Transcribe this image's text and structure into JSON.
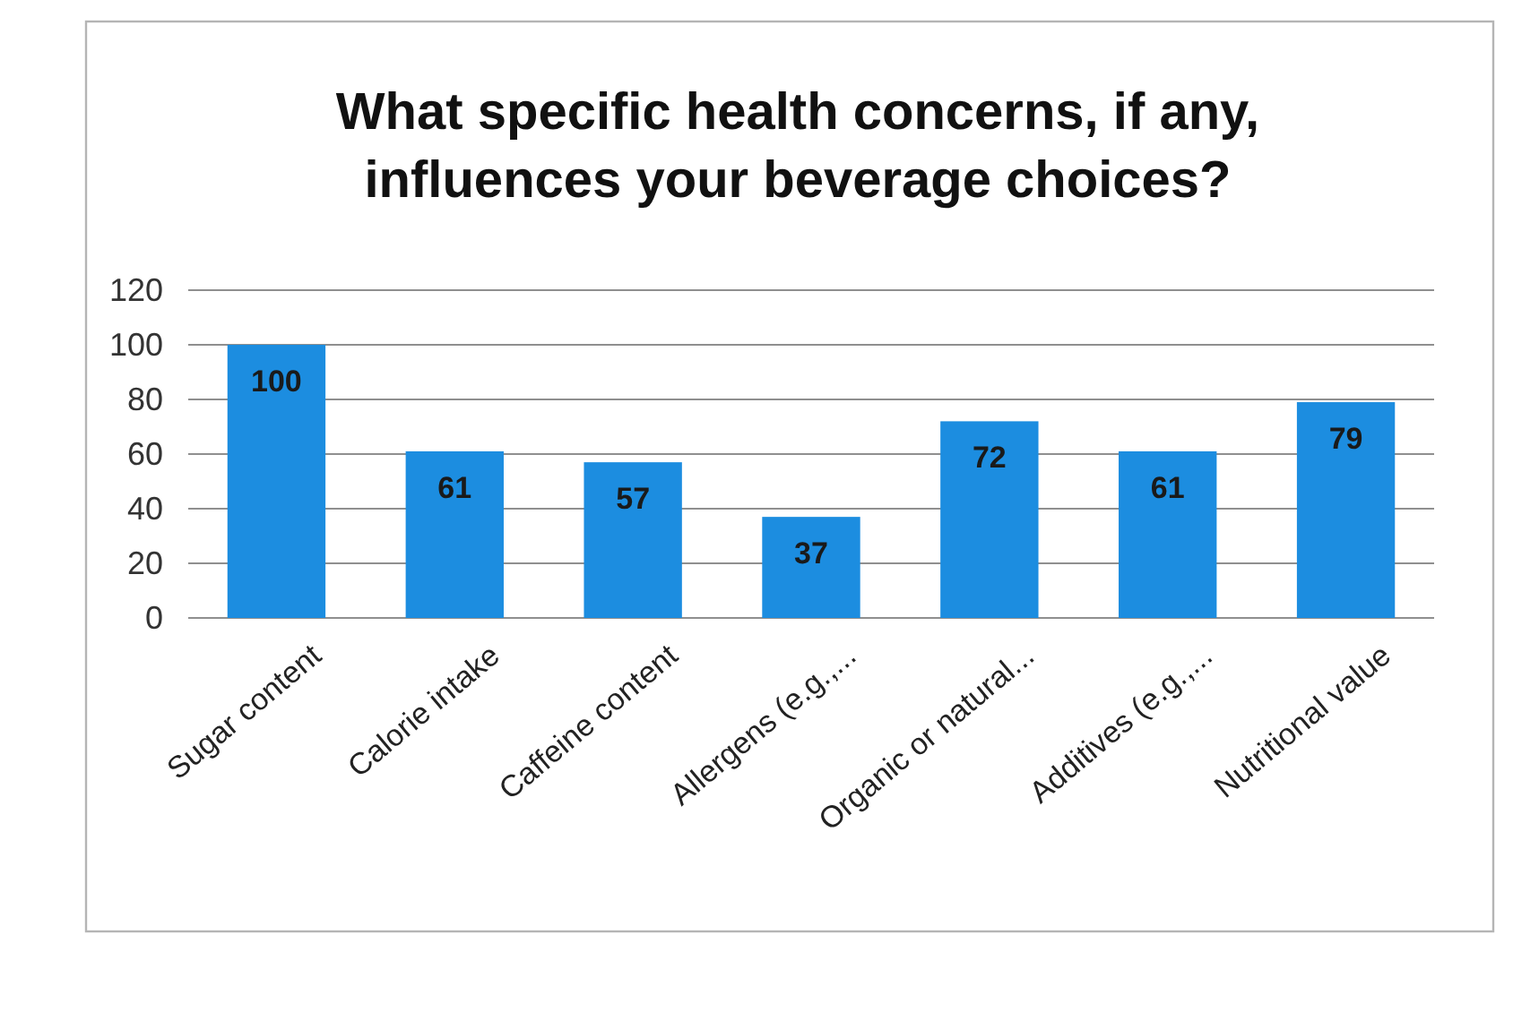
{
  "chart_data": {
    "type": "bar",
    "title": "What specific health concerns, if any, influences your beverage choices?",
    "categories": [
      "Sugar content",
      "Calorie intake",
      "Caffeine content",
      "Allergens (e.g.,...",
      "Organic or natural...",
      "Additives (e.g.,...",
      "Nutritional value"
    ],
    "values": [
      100,
      61,
      57,
      37,
      72,
      61,
      79
    ],
    "color": "#1c8de0",
    "ylim": [
      0,
      120
    ],
    "yticks": [
      0,
      20,
      40,
      60,
      80,
      100,
      120
    ],
    "grid": "y",
    "data_labels": true
  }
}
